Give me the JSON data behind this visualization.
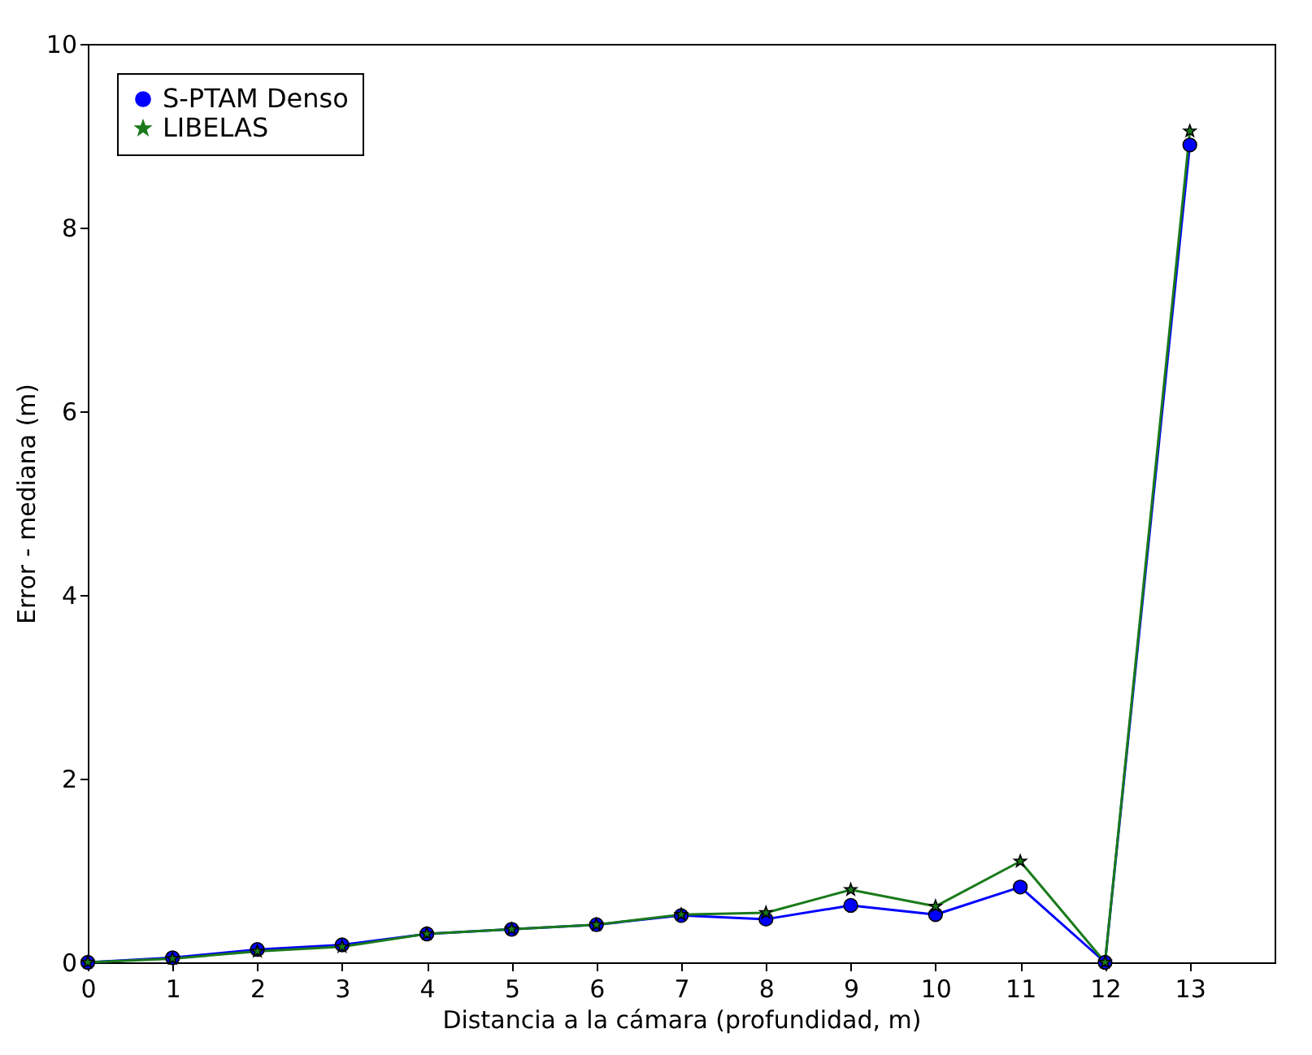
{
  "chart_data": {
    "type": "line",
    "xlabel": "Distancia a la cámara (profundidad, m)",
    "ylabel": "Error - mediana (m)",
    "x": [
      0,
      1,
      2,
      3,
      4,
      5,
      6,
      7,
      8,
      9,
      10,
      11,
      12,
      13
    ],
    "xlim": [
      0,
      14
    ],
    "xticks": [
      0,
      1,
      2,
      3,
      4,
      5,
      6,
      7,
      8,
      9,
      10,
      11,
      12,
      13
    ],
    "ylim": [
      0,
      10
    ],
    "yticks": [
      0,
      2,
      4,
      6,
      8,
      10
    ],
    "grid": false,
    "legend": "top left",
    "line_style": "solid",
    "series": [
      {
        "name": "S-PTAM Denso",
        "color": "#0000ff",
        "marker": "circle",
        "values": [
          0,
          0.05,
          0.14,
          0.19,
          0.31,
          0.36,
          0.41,
          0.51,
          0.47,
          0.62,
          0.52,
          0.82,
          0,
          8.9
        ]
      },
      {
        "name": "LIBELAS",
        "color": "#1a7a1a",
        "marker": "star",
        "values": [
          0,
          0.04,
          0.12,
          0.17,
          0.31,
          0.36,
          0.41,
          0.52,
          0.54,
          0.79,
          0.61,
          1.1,
          0,
          9.05
        ]
      }
    ]
  }
}
